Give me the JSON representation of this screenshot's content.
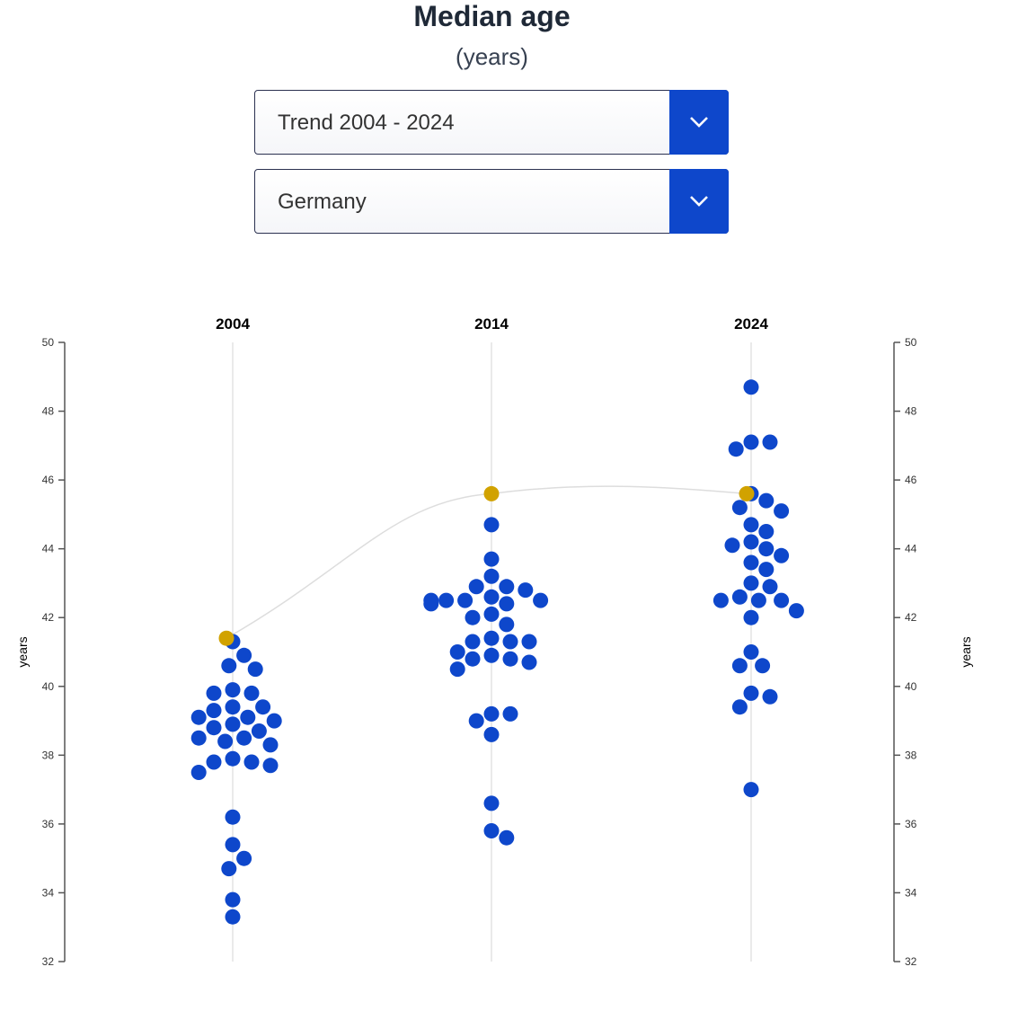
{
  "header": {
    "title": "Median age",
    "subtitle": "(years)"
  },
  "controls": {
    "period_select": {
      "value": "Trend 2004 - 2024"
    },
    "country_select": {
      "value": "Germany"
    }
  },
  "colors": {
    "dot": "#0e47cb",
    "highlight": "#d1a200",
    "accent": "#0e47cb",
    "trend_line": "#dddddd"
  },
  "chart_data": {
    "type": "scatter",
    "categories": [
      "2004",
      "2014",
      "2024"
    ],
    "ylabel": "years",
    "ylabel_right": "years",
    "ylim": [
      32,
      50
    ],
    "yticks": [
      32,
      34,
      36,
      38,
      40,
      42,
      44,
      46,
      48,
      50
    ],
    "grid": false,
    "highlight": {
      "name": "Germany",
      "values": [
        41.4,
        45.6,
        45.6
      ]
    },
    "series": [
      {
        "category": "2004",
        "values": [
          41.3,
          40.9,
          40.6,
          40.5,
          39.9,
          39.8,
          39.8,
          39.4,
          39.4,
          39.3,
          39.1,
          39.1,
          39.0,
          38.9,
          38.8,
          38.7,
          38.5,
          38.5,
          38.4,
          38.3,
          37.9,
          37.8,
          37.8,
          37.7,
          37.5,
          36.2,
          35.4,
          35.0,
          34.7,
          33.8,
          33.3
        ]
      },
      {
        "category": "2014",
        "values": [
          44.7,
          43.7,
          43.2,
          42.9,
          42.9,
          42.8,
          42.6,
          42.5,
          42.5,
          42.5,
          42.5,
          42.4,
          42.4,
          42.1,
          42.0,
          41.8,
          41.4,
          41.3,
          41.3,
          41.3,
          41.0,
          40.9,
          40.8,
          40.8,
          40.7,
          40.5,
          39.2,
          39.2,
          39.0,
          38.6,
          36.6,
          35.8,
          35.6
        ]
      },
      {
        "category": "2024",
        "values": [
          48.7,
          47.1,
          47.1,
          46.9,
          45.6,
          45.4,
          45.2,
          45.1,
          44.7,
          44.5,
          44.2,
          44.1,
          44.0,
          43.8,
          43.6,
          43.4,
          43.0,
          42.9,
          42.6,
          42.5,
          42.5,
          42.5,
          42.2,
          42.0,
          41.0,
          40.6,
          40.6,
          39.8,
          39.7,
          39.4,
          37.0
        ]
      }
    ]
  }
}
